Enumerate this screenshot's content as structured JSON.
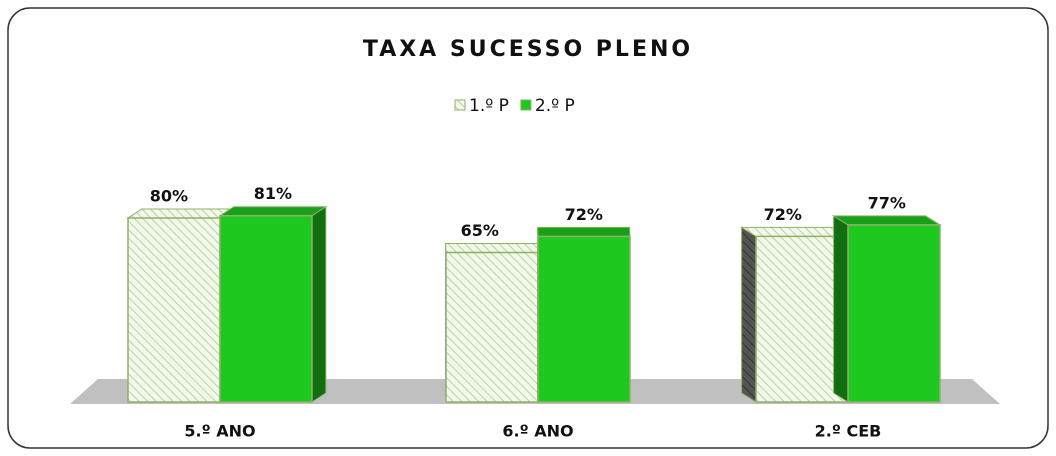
{
  "chart_data": {
    "type": "bar3d",
    "title": "TAXA SUCESSO PLENO",
    "categories": [
      "5.º ANO",
      "6.º ANO",
      "2.º CEB"
    ],
    "series": [
      {
        "name": "1.º P",
        "color": "#eef5e4",
        "values": [
          80,
          65,
          72
        ],
        "value_labels": [
          "80%",
          "65%",
          "72%"
        ]
      },
      {
        "name": "2.º P",
        "color": "#1fc81f",
        "values": [
          81,
          72,
          77
        ],
        "value_labels": [
          "81%",
          "72%",
          "77%"
        ]
      }
    ],
    "legend": "top"
  }
}
